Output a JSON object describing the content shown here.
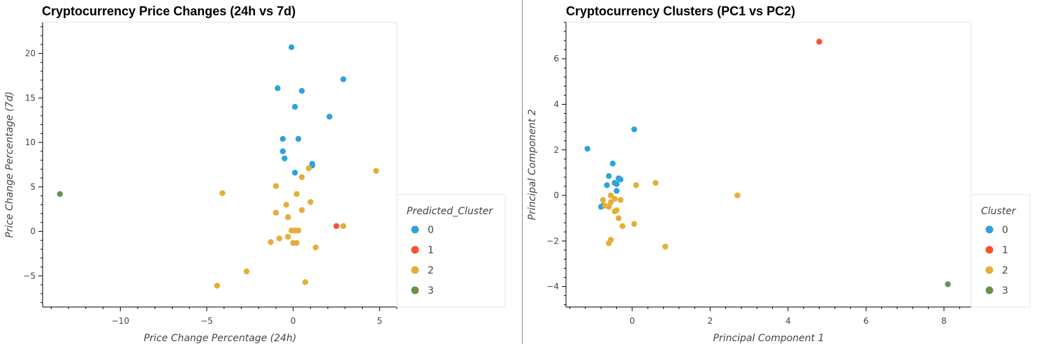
{
  "chart_data": [
    {
      "type": "scatter",
      "title": "Cryptocurrency Price Changes (24h vs 7d)",
      "xlabel": "Price Change Percentage (24h)",
      "ylabel": "Price Change Percentage (7d)",
      "xlim": [
        -14.5,
        6
      ],
      "ylim": [
        -8.5,
        23.5
      ],
      "xticks": [
        -10,
        -5,
        0,
        5
      ],
      "yticks": [
        -5,
        0,
        5,
        10,
        15,
        20
      ],
      "grid": false,
      "legend_title": "Predicted_Cluster",
      "legend_position": "right",
      "series": [
        {
          "name": "0",
          "color": "#30a2da",
          "points": [
            [
              -0.1,
              20.7
            ],
            [
              -0.9,
              16.1
            ],
            [
              0.5,
              15.8
            ],
            [
              2.9,
              17.1
            ],
            [
              0.1,
              14.0
            ],
            [
              2.1,
              12.9
            ],
            [
              -0.6,
              10.4
            ],
            [
              0.3,
              10.4
            ],
            [
              -0.6,
              9.0
            ],
            [
              -0.5,
              8.2
            ],
            [
              1.1,
              7.6
            ],
            [
              1.1,
              7.4
            ],
            [
              0.1,
              6.6
            ]
          ]
        },
        {
          "name": "1",
          "color": "#fc4f30",
          "points": [
            [
              2.5,
              0.6
            ]
          ]
        },
        {
          "name": "2",
          "color": "#e5ae38",
          "points": [
            [
              4.8,
              6.8
            ],
            [
              -4.1,
              4.3
            ],
            [
              0.9,
              7.1
            ],
            [
              0.5,
              6.1
            ],
            [
              -1.0,
              5.1
            ],
            [
              0.2,
              4.2
            ],
            [
              -0.4,
              3.0
            ],
            [
              1.0,
              3.3
            ],
            [
              -1.0,
              2.1
            ],
            [
              0.5,
              2.4
            ],
            [
              -0.3,
              1.6
            ],
            [
              2.9,
              0.6
            ],
            [
              -0.1,
              0.1
            ],
            [
              0.1,
              0.1
            ],
            [
              0.3,
              0.1
            ],
            [
              -0.3,
              -0.6
            ],
            [
              -0.8,
              -0.8
            ],
            [
              -1.3,
              -1.2
            ],
            [
              0.0,
              -1.3
            ],
            [
              0.2,
              -1.3
            ],
            [
              1.3,
              -1.8
            ],
            [
              -2.7,
              -4.5
            ],
            [
              -4.4,
              -6.1
            ],
            [
              0.7,
              -5.7
            ]
          ]
        },
        {
          "name": "3",
          "color": "#6d904f",
          "points": [
            [
              -13.5,
              4.2
            ]
          ]
        }
      ]
    },
    {
      "type": "scatter",
      "title": "Cryptocurrency Clusters (PC1 vs PC2)",
      "xlabel": "Principal Component 1",
      "ylabel": "Principal Component 2",
      "xlim": [
        -1.7,
        8.7
      ],
      "ylim": [
        -4.9,
        7.6
      ],
      "xticks": [
        0,
        2,
        4,
        6,
        8
      ],
      "yticks": [
        -4,
        -2,
        0,
        2,
        4,
        6
      ],
      "grid": false,
      "legend_title": "Cluster",
      "legend_position": "right",
      "series": [
        {
          "name": "0",
          "color": "#30a2da",
          "points": [
            [
              0.05,
              2.9
            ],
            [
              -1.15,
              2.05
            ],
            [
              -0.5,
              1.4
            ],
            [
              -0.6,
              0.85
            ],
            [
              -0.35,
              0.75
            ],
            [
              -0.3,
              0.7
            ],
            [
              -0.45,
              0.55
            ],
            [
              -0.4,
              0.5
            ],
            [
              -0.65,
              0.45
            ],
            [
              -0.4,
              0.2
            ],
            [
              -0.8,
              -0.5
            ],
            [
              -0.75,
              -0.45
            ]
          ]
        },
        {
          "name": "1",
          "color": "#fc4f30",
          "points": [
            [
              4.8,
              6.75
            ]
          ]
        },
        {
          "name": "2",
          "color": "#e5ae38",
          "points": [
            [
              0.6,
              0.55
            ],
            [
              0.1,
              0.45
            ],
            [
              2.7,
              0.0
            ],
            [
              -0.55,
              0.0
            ],
            [
              -0.75,
              -0.2
            ],
            [
              -0.55,
              -0.3
            ],
            [
              -0.45,
              -0.15
            ],
            [
              -0.3,
              -0.2
            ],
            [
              -0.7,
              -0.45
            ],
            [
              -0.6,
              -0.5
            ],
            [
              -0.45,
              -0.7
            ],
            [
              -0.4,
              -0.65
            ],
            [
              -0.35,
              -1.0
            ],
            [
              -0.25,
              -1.35
            ],
            [
              0.05,
              -1.25
            ],
            [
              -0.55,
              -1.95
            ],
            [
              -0.6,
              -2.1
            ],
            [
              0.85,
              -2.25
            ]
          ]
        },
        {
          "name": "3",
          "color": "#6d904f",
          "points": [
            [
              8.1,
              -3.9
            ]
          ]
        }
      ]
    }
  ]
}
